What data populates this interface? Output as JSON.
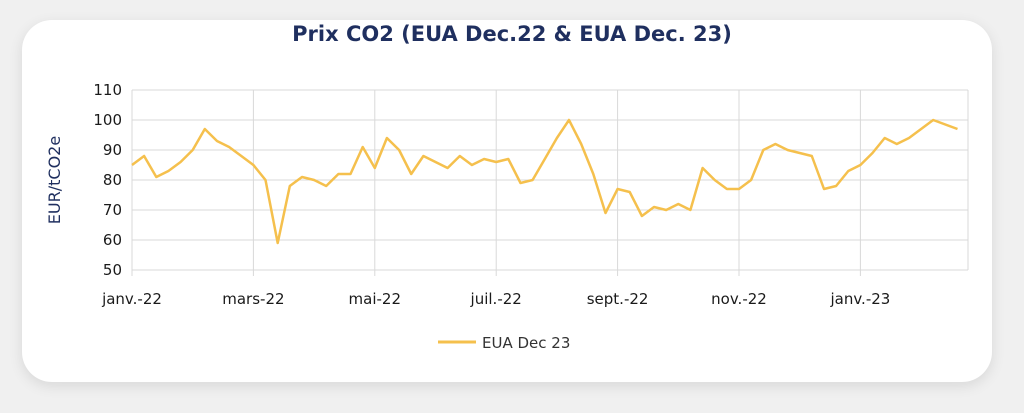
{
  "chart_data": {
    "type": "line",
    "title": "Prix CO2 (EUA Dec.22 & EUA Dec. 23)",
    "ylabel": "EUR/tCO2e",
    "xlabel": "",
    "ylim": [
      50,
      110
    ],
    "yticks": [
      50,
      60,
      70,
      80,
      90,
      100,
      110
    ],
    "x_tick_labels": [
      "janv.-22",
      "mars-22",
      "mai-22",
      "juil.-22",
      "sept.-22",
      "nov.-22",
      "janv.-23"
    ],
    "grid": true,
    "legend": "bottom-center",
    "series": [
      {
        "name": "EUA Dec 23",
        "color": "#f5c04d",
        "x_index": [
          0,
          0.1,
          0.2,
          0.3,
          0.4,
          0.5,
          0.6,
          0.7,
          0.8,
          0.9,
          1,
          1.1,
          1.2,
          1.3,
          1.4,
          1.5,
          1.6,
          1.7,
          1.8,
          1.9,
          2,
          2.1,
          2.2,
          2.3,
          2.4,
          2.5,
          2.6,
          2.7,
          2.8,
          2.9,
          3,
          3.1,
          3.2,
          3.3,
          3.4,
          3.5,
          3.6,
          3.7,
          3.8,
          3.9,
          4,
          4.1,
          4.2,
          4.3,
          4.4,
          4.5,
          4.6,
          4.7,
          4.8,
          4.9,
          5,
          5.1,
          5.2,
          5.3,
          5.4,
          5.5,
          5.6,
          5.7,
          5.8,
          5.9,
          6,
          6.1,
          6.2,
          6.3,
          6.4,
          6.5,
          6.6,
          6.8
        ],
        "values": [
          85,
          88,
          81,
          83,
          86,
          90,
          97,
          93,
          91,
          88,
          85,
          80,
          59,
          78,
          81,
          80,
          78,
          82,
          82,
          91,
          84,
          94,
          90,
          82,
          88,
          86,
          84,
          88,
          85,
          87,
          86,
          87,
          79,
          80,
          87,
          94,
          100,
          92,
          82,
          69,
          77,
          76,
          68,
          71,
          70,
          72,
          70,
          84,
          80,
          77,
          77,
          80,
          90,
          92,
          90,
          89,
          88,
          77,
          78,
          83,
          85,
          89,
          94,
          92,
          94,
          97,
          100,
          97
        ]
      }
    ]
  }
}
